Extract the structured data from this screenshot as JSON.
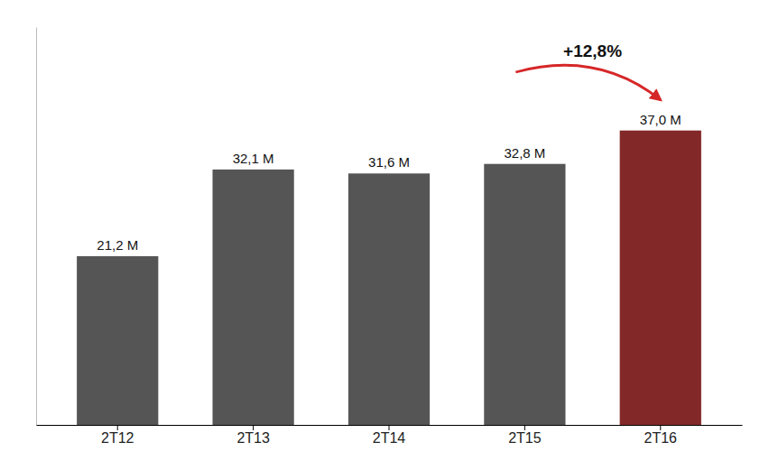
{
  "chart_data": {
    "type": "bar",
    "categories": [
      "2T12",
      "2T13",
      "2T14",
      "2T15",
      "2T16"
    ],
    "values": [
      21.2,
      32.1,
      31.6,
      32.8,
      37.0
    ],
    "value_labels": [
      "21,2 M",
      "32,1 M",
      "31,6 M",
      "32,8 M",
      "37,0 M"
    ],
    "colors": [
      "#555555",
      "#555555",
      "#555555",
      "#555555",
      "#832828"
    ],
    "ylim": [
      0,
      50
    ],
    "data_labels": true,
    "tick_labels": "x",
    "annotation": "+12,8%"
  }
}
